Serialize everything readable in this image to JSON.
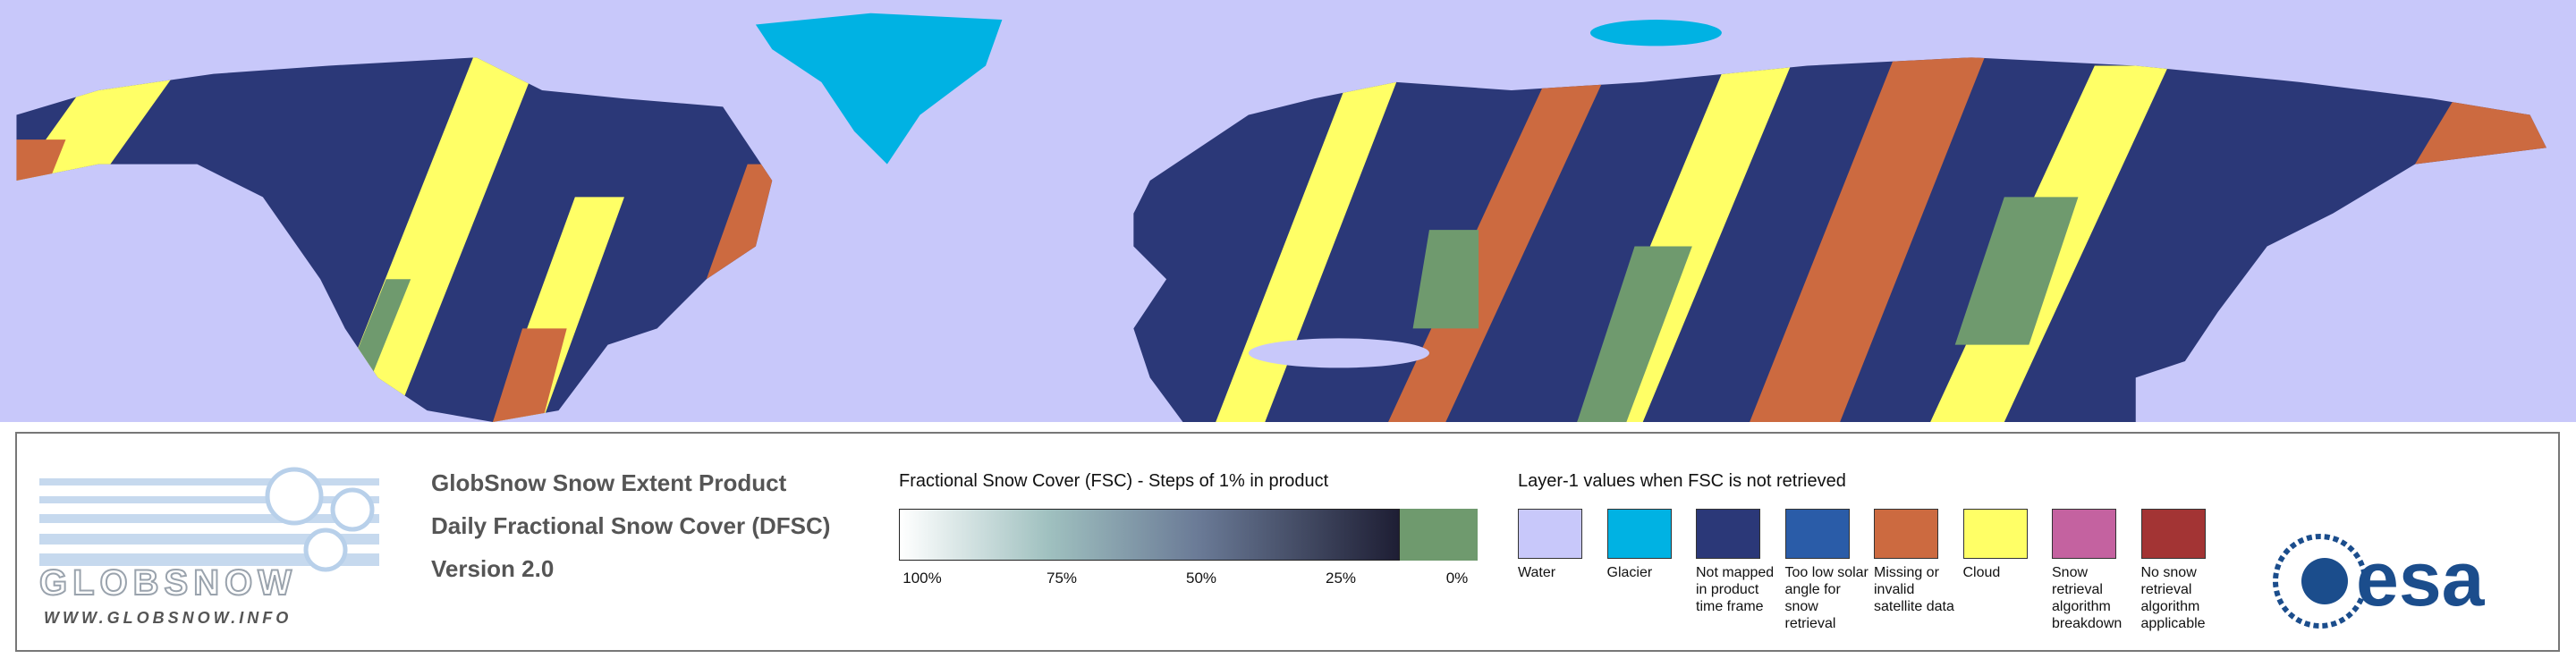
{
  "logo": {
    "name": "GLOBSNOW",
    "url": "WWW.GLOBSNOW.INFO"
  },
  "product": {
    "lines": [
      "GlobSnow Snow Extent Product",
      "Daily Fractional Snow Cover (DFSC)",
      "Version 2.0"
    ]
  },
  "fsc_scale": {
    "title": "Fractional Snow Cover (FSC) - Steps of 1% in product",
    "labels": [
      "100%",
      "75%",
      "50%",
      "25%",
      "0%"
    ]
  },
  "layer1": {
    "title": "Layer-1 values when FSC is not retrieved",
    "items": [
      {
        "label": "Water",
        "color": "#c8c8fa"
      },
      {
        "label": "Glacier",
        "color": "#00b2e3"
      },
      {
        "label": "Not mapped in product time frame",
        "color": "#2b3878"
      },
      {
        "label": "Too low solar angle for snow retrieval",
        "color": "#2a5ca8"
      },
      {
        "label": "Missing or invalid satellite data",
        "color": "#cc6a40"
      },
      {
        "label": "Cloud",
        "color": "#ffff66"
      },
      {
        "label": "Snow retrieval algorithm breakdown",
        "color": "#c462a0"
      },
      {
        "label": "No snow retrieval algorithm applicable",
        "color": "#a33434"
      }
    ]
  },
  "esa_logo": "esa"
}
